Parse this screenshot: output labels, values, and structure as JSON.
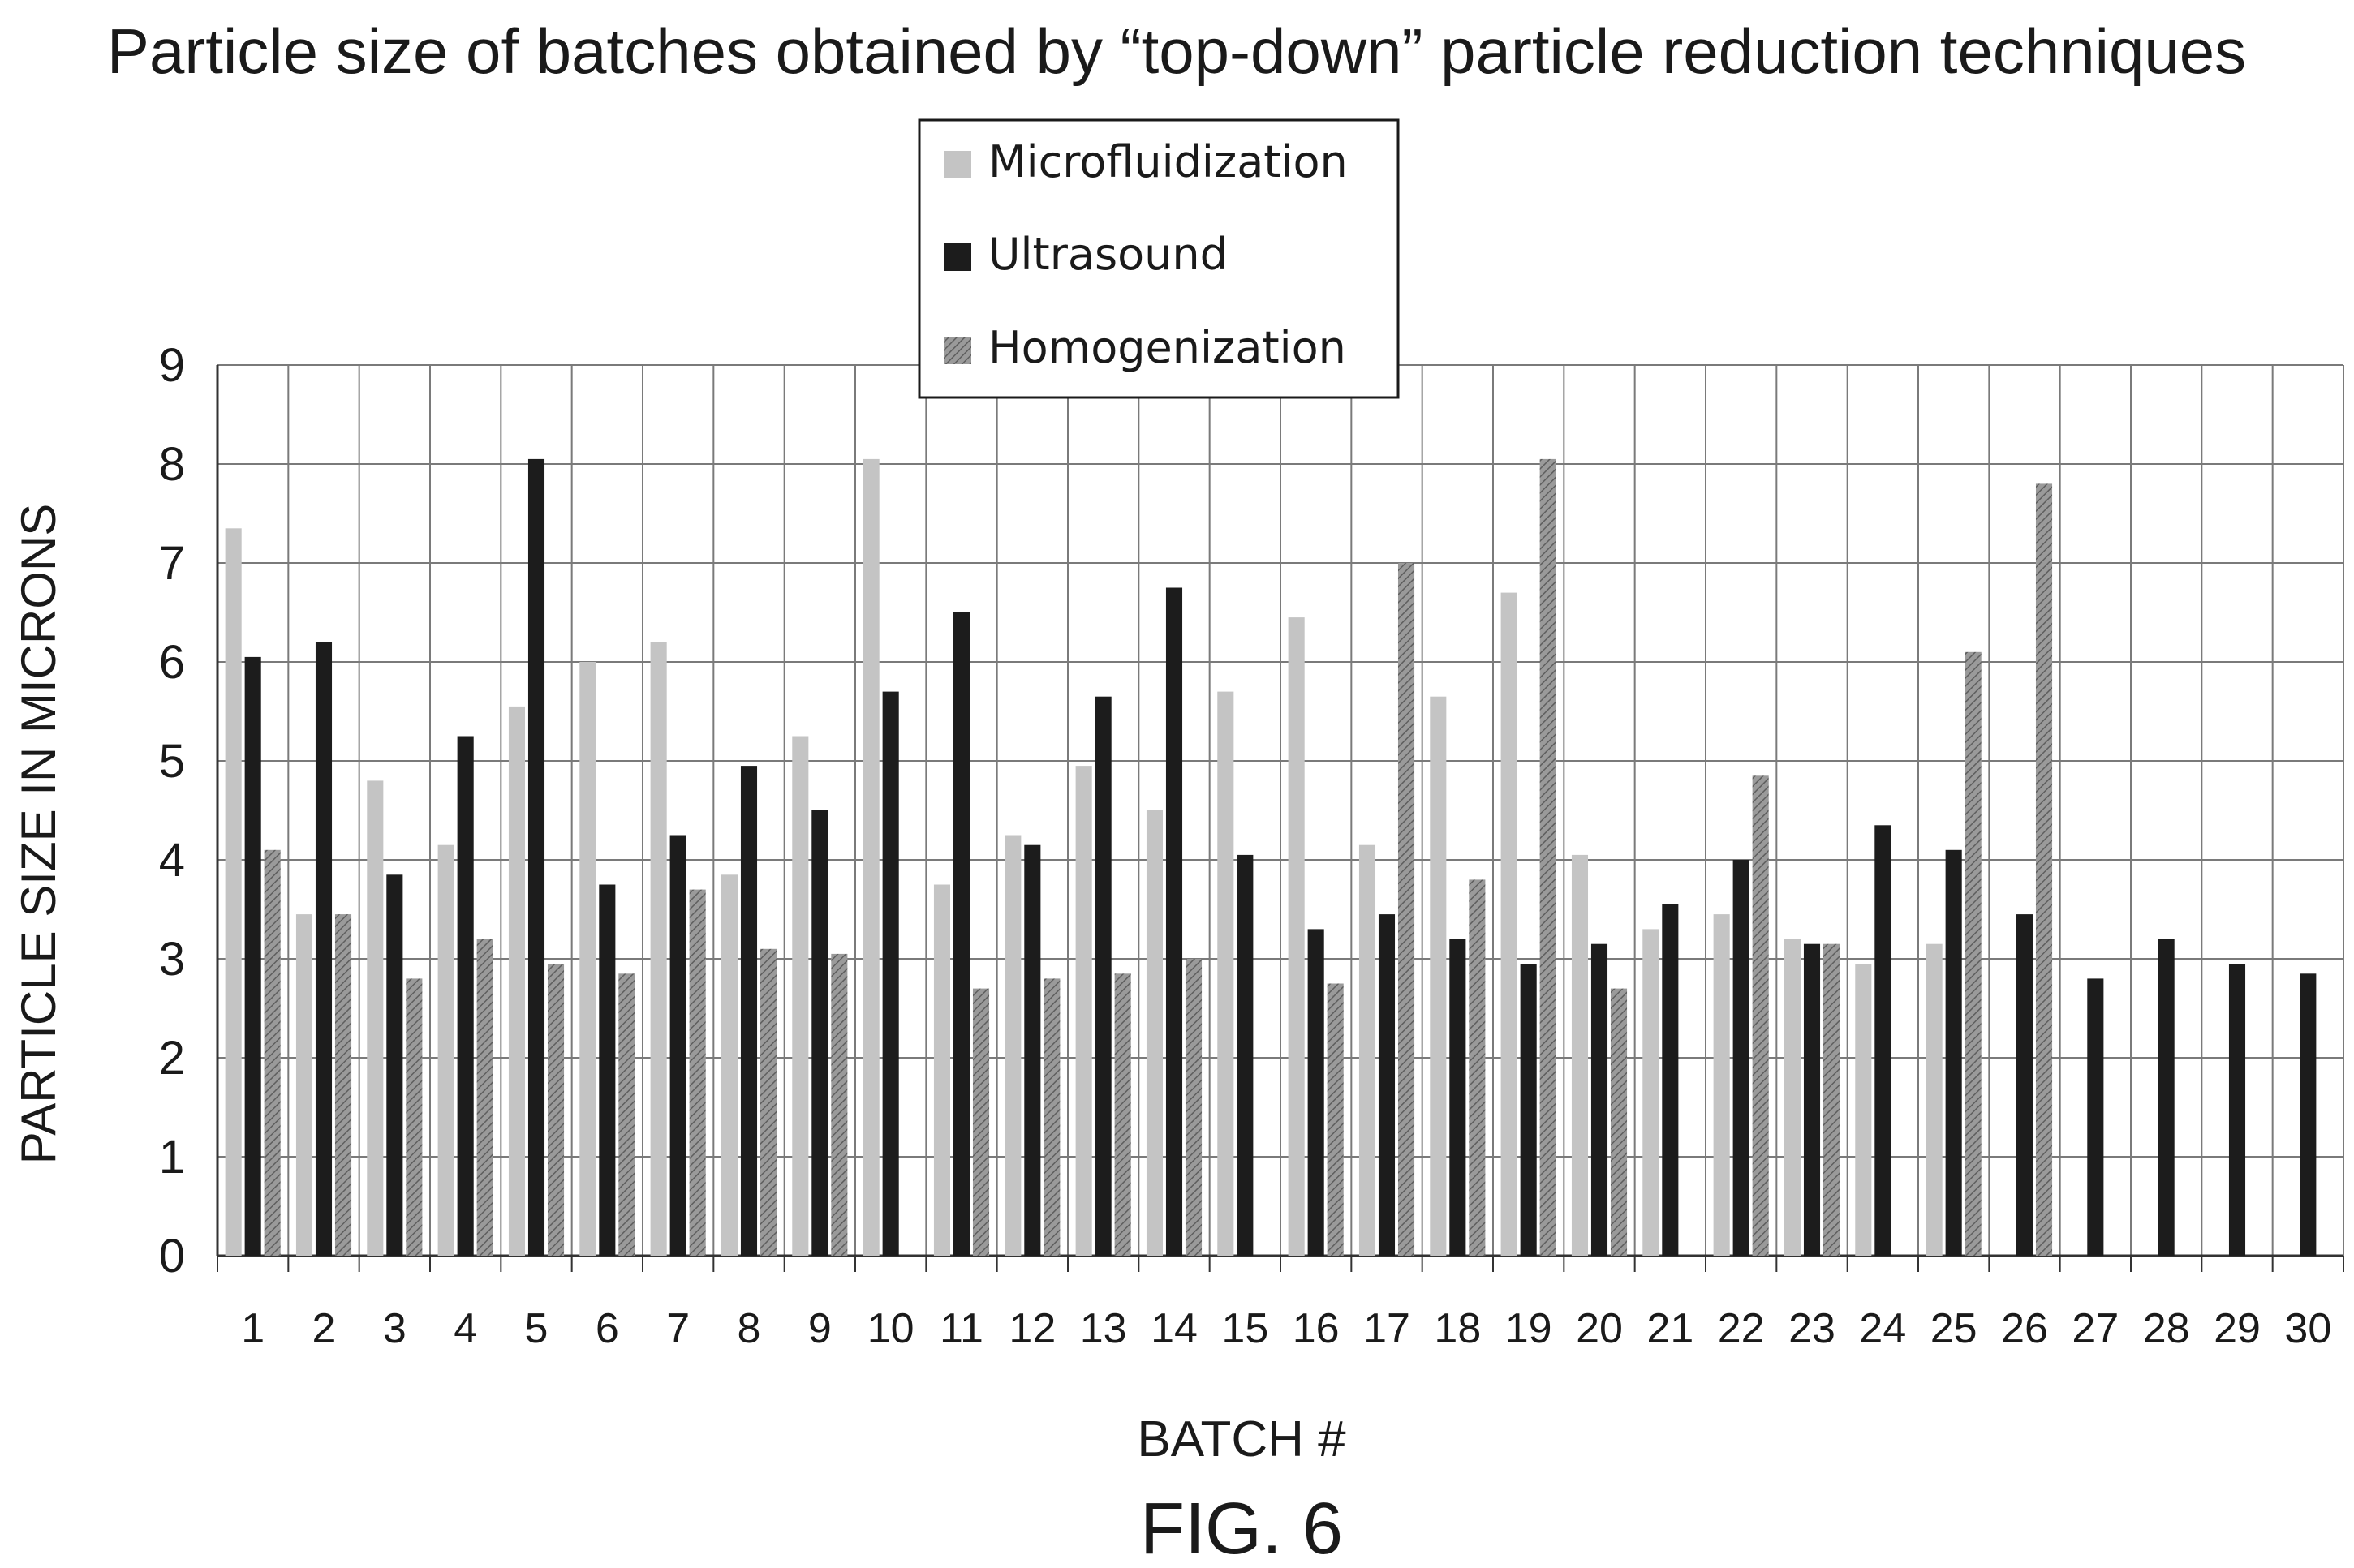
{
  "chart_data": {
    "type": "bar",
    "title": "Particle size of batches obtained by “top-down” particle reduction techniques",
    "xlabel": "BATCH #",
    "ylabel": "PARTICLE SIZE IN MICRONS",
    "ylim": [
      0,
      9
    ],
    "yticks": [
      "0",
      "1",
      "2",
      "3",
      "4",
      "5",
      "6",
      "7",
      "8",
      "9"
    ],
    "grid": true,
    "legend_position": "top-center",
    "categories": [
      "1",
      "2",
      "3",
      "4",
      "5",
      "6",
      "7",
      "8",
      "9",
      "10",
      "11",
      "12",
      "13",
      "14",
      "15",
      "16",
      "17",
      "18",
      "19",
      "20",
      "21",
      "22",
      "23",
      "24",
      "25",
      "26",
      "27",
      "28",
      "29",
      "30"
    ],
    "series": [
      {
        "name": "Microfluidization",
        "color": "#c4c4c4",
        "pattern": "solid",
        "values": [
          7.35,
          3.45,
          4.8,
          4.15,
          5.55,
          6.0,
          6.2,
          3.85,
          5.25,
          8.05,
          3.75,
          4.25,
          4.95,
          4.5,
          5.7,
          6.45,
          4.15,
          5.65,
          6.7,
          4.05,
          3.3,
          3.45,
          3.2,
          2.95,
          3.15,
          null,
          null,
          null,
          null,
          null
        ]
      },
      {
        "name": "Ultrasound",
        "color": "#1c1c1c",
        "pattern": "solid",
        "values": [
          6.05,
          6.2,
          3.85,
          5.25,
          8.05,
          3.75,
          4.25,
          4.95,
          4.5,
          5.7,
          6.5,
          4.15,
          5.65,
          6.75,
          4.05,
          3.3,
          3.45,
          3.2,
          2.95,
          3.15,
          3.55,
          4.0,
          3.15,
          4.35,
          4.1,
          3.45,
          2.8,
          3.2,
          2.95,
          2.85
        ]
      },
      {
        "name": "Homogenization",
        "color": "#8a8a8a",
        "pattern": "hatched",
        "values": [
          4.1,
          3.45,
          2.8,
          3.2,
          2.95,
          2.85,
          3.7,
          3.1,
          3.05,
          null,
          2.7,
          2.8,
          2.85,
          3.0,
          null,
          2.75,
          7.0,
          3.8,
          8.05,
          2.7,
          null,
          4.85,
          3.15,
          null,
          6.1,
          7.8,
          null,
          null,
          null,
          null
        ]
      }
    ]
  },
  "figure_label": "FIG. 6"
}
